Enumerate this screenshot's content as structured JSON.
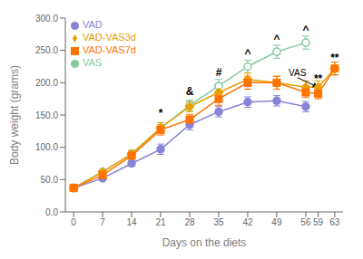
{
  "chart_data": {
    "type": "line",
    "xlabel": "Days on the diets",
    "ylabel": "Body weight (grams)",
    "xlim": [
      -2,
      65
    ],
    "xticks": [
      0,
      7,
      14,
      21,
      28,
      35,
      42,
      49,
      56,
      59,
      63
    ],
    "ylim": [
      0,
      300
    ],
    "yticks": [
      {
        "value": 0,
        "label": "0.0"
      },
      {
        "value": 50,
        "label": "50.0"
      },
      {
        "value": 100,
        "label": "100.0"
      },
      {
        "value": 150,
        "label": "150.0"
      },
      {
        "value": 200,
        "label": "200.0"
      },
      {
        "value": 250,
        "label": "250.0"
      },
      {
        "value": 300,
        "label": "300.0"
      }
    ],
    "legend": "upper left",
    "series": [
      {
        "name": "VAD",
        "color": "#8884d8",
        "marker": "circle",
        "x": [
          0,
          7,
          14,
          21,
          28,
          35,
          42,
          49,
          56
        ],
        "values": [
          37,
          52,
          75,
          97,
          135,
          155,
          170,
          172,
          163
        ],
        "errors": [
          2,
          3,
          4,
          8,
          8,
          8,
          8,
          8,
          8
        ]
      },
      {
        "name": "VAS",
        "color": "#82ca9d",
        "marker": "open_circle",
        "x": [
          0,
          7,
          14,
          21,
          28,
          35,
          42,
          49,
          56
        ],
        "values": [
          37,
          62,
          90,
          130,
          165,
          195,
          225,
          248,
          262
        ],
        "errors": [
          2,
          3,
          5,
          8,
          8,
          10,
          10,
          10,
          10
        ]
      },
      {
        "name": "VAD-VAS3d",
        "color": "#e6a100",
        "marker": "diamond",
        "x": [
          0,
          7,
          14,
          21,
          28,
          35,
          42,
          49,
          56,
          59,
          63
        ],
        "values": [
          37,
          62,
          90,
          130,
          163,
          185,
          205,
          200,
          193,
          193,
          222
        ],
        "errors": [
          2,
          3,
          5,
          8,
          8,
          10,
          10,
          10,
          10,
          10,
          10
        ]
      },
      {
        "name": "VAD-VAS7d",
        "color": "#ff7300",
        "marker": "square",
        "x": [
          0,
          7,
          14,
          21,
          28,
          35,
          42,
          49,
          56,
          59,
          63
        ],
        "values": [
          37,
          57,
          87,
          127,
          143,
          175,
          200,
          200,
          185,
          183,
          222
        ],
        "errors": [
          2,
          3,
          5,
          8,
          8,
          10,
          10,
          10,
          8,
          8,
          10
        ]
      }
    ],
    "annotations": [
      {
        "text": "*",
        "x": 21,
        "y": 145
      },
      {
        "text": "&",
        "x": 28,
        "y": 178
      },
      {
        "text": "#",
        "x": 35,
        "y": 208
      },
      {
        "text": "^",
        "x": 42,
        "y": 237
      },
      {
        "text": "^",
        "x": 49,
        "y": 260
      },
      {
        "text": "^",
        "x": 56,
        "y": 274
      },
      {
        "text": "VAS",
        "x": 54,
        "y": 208,
        "arrow_to": [
          59,
          193
        ]
      },
      {
        "text": "**",
        "x": 59,
        "y": 197
      },
      {
        "text": "**",
        "x": 63,
        "y": 230
      }
    ]
  }
}
